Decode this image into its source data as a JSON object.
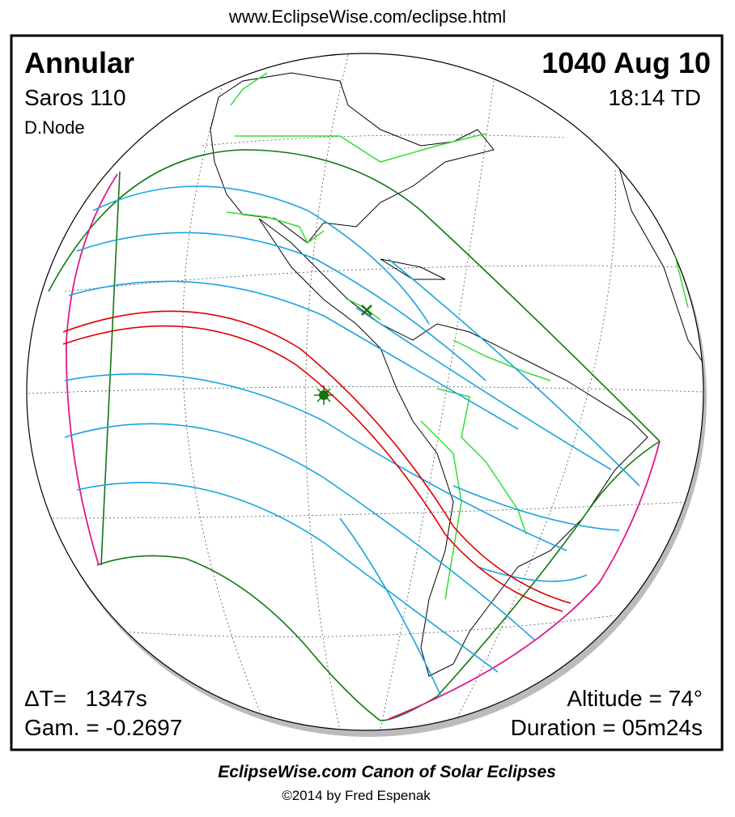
{
  "header": {
    "url": "www.EclipseWise.com/eclipse.html"
  },
  "eclipse": {
    "type": "Annular",
    "saros": "Saros 110",
    "node": "D.Node",
    "date": "1040 Aug 10",
    "time": "18:14 TD",
    "delta_t": "ΔT=   1347s",
    "gamma": "Gam. = -0.2697",
    "altitude": "Altitude = 74°",
    "duration": "Duration = 05m24s"
  },
  "footer": {
    "title": "EclipseWise.com Canon of Solar Eclipses",
    "copyright": "©2014 by Fred Espenak"
  }
}
